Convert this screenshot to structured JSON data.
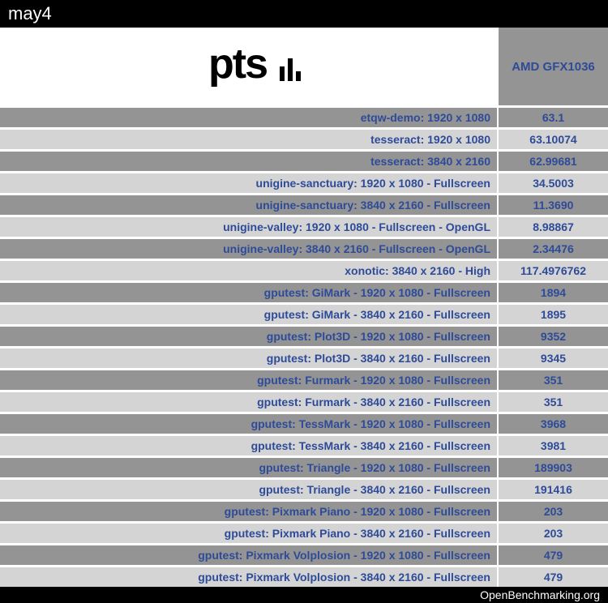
{
  "header": {
    "title": "may4"
  },
  "footer": {
    "text": "OpenBenchmarking.org"
  },
  "gpu_column": {
    "label": "AMD GFX1036"
  },
  "logo": {
    "text": "pts"
  },
  "colors": {
    "header_bg": "#000000",
    "header_text": "#ffffff",
    "odd_bg": "#949494",
    "even_bg": "#d4d4d4",
    "link_color": "#2e4b99",
    "row_gap": "#ffffff"
  },
  "rows": [
    {
      "label": "etqw-demo: 1920 x 1080",
      "value": "63.1"
    },
    {
      "label": "tesseract: 1920 x 1080",
      "value": "63.10074"
    },
    {
      "label": "tesseract: 3840 x 2160",
      "value": "62.99681"
    },
    {
      "label": "unigine-sanctuary: 1920 x 1080 - Fullscreen",
      "value": "34.5003"
    },
    {
      "label": "unigine-sanctuary: 3840 x 2160 - Fullscreen",
      "value": "11.3690"
    },
    {
      "label": "unigine-valley: 1920 x 1080 - Fullscreen - OpenGL",
      "value": "8.98867"
    },
    {
      "label": "unigine-valley: 3840 x 2160 - Fullscreen - OpenGL",
      "value": "2.34476"
    },
    {
      "label": "xonotic: 3840 x 2160 - High",
      "value": "117.4976762"
    },
    {
      "label": "gputest: GiMark - 1920 x 1080 - Fullscreen",
      "value": "1894"
    },
    {
      "label": "gputest: GiMark - 3840 x 2160 - Fullscreen",
      "value": "1895"
    },
    {
      "label": "gputest: Plot3D - 1920 x 1080 - Fullscreen",
      "value": "9352"
    },
    {
      "label": "gputest: Plot3D - 3840 x 2160 - Fullscreen",
      "value": "9345"
    },
    {
      "label": "gputest: Furmark - 1920 x 1080 - Fullscreen",
      "value": "351"
    },
    {
      "label": "gputest: Furmark - 3840 x 2160 - Fullscreen",
      "value": "351"
    },
    {
      "label": "gputest: TessMark - 1920 x 1080 - Fullscreen",
      "value": "3968"
    },
    {
      "label": "gputest: TessMark - 3840 x 2160 - Fullscreen",
      "value": "3981"
    },
    {
      "label": "gputest: Triangle - 1920 x 1080 - Fullscreen",
      "value": "189903"
    },
    {
      "label": "gputest: Triangle - 3840 x 2160 - Fullscreen",
      "value": "191416"
    },
    {
      "label": "gputest: Pixmark Piano - 1920 x 1080 - Fullscreen",
      "value": "203"
    },
    {
      "label": "gputest: Pixmark Piano - 3840 x 2160 - Fullscreen",
      "value": "203"
    },
    {
      "label": "gputest: Pixmark Volplosion - 1920 x 1080 - Fullscreen",
      "value": "479"
    },
    {
      "label": "gputest: Pixmark Volplosion - 3840 x 2160 - Fullscreen",
      "value": "479"
    }
  ]
}
